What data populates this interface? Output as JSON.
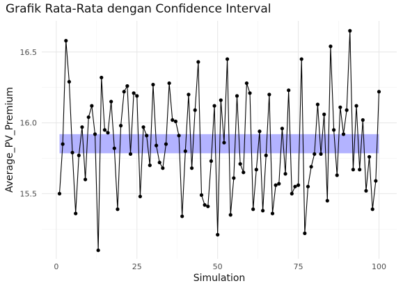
{
  "chart_data": {
    "type": "line",
    "title": "Grafik Rata-Rata dengan Confidence Interval",
    "xlabel": "Simulation",
    "ylabel": "Average_PV_Premium",
    "xlim": [
      -4.5,
      105.5
    ],
    "ylim": [
      15.04,
      16.72
    ],
    "x_ticks": [
      0,
      25,
      50,
      75,
      100
    ],
    "x_tick_labels": [
      "0",
      "25",
      "50",
      "75",
      "100"
    ],
    "y_ticks": [
      15.5,
      16.0,
      16.5
    ],
    "y_tick_labels": [
      "15.5",
      "16.0",
      "16.5"
    ],
    "grid": true,
    "confidence_band": {
      "x_range": [
        1,
        100
      ],
      "lower": 15.785,
      "upper": 15.92,
      "color": "#b3b3ff"
    },
    "series": [
      {
        "color": "#000000",
        "x": [
          1,
          2,
          3,
          4,
          5,
          6,
          7,
          8,
          9,
          10,
          11,
          12,
          13,
          14,
          15,
          16,
          17,
          18,
          19,
          20,
          21,
          22,
          23,
          24,
          25,
          26,
          27,
          28,
          29,
          30,
          31,
          32,
          33,
          34,
          35,
          36,
          37,
          38,
          39,
          40,
          41,
          42,
          43,
          44,
          45,
          46,
          47,
          48,
          49,
          50,
          51,
          52,
          53,
          54,
          55,
          56,
          57,
          58,
          59,
          60,
          61,
          62,
          63,
          64,
          65,
          66,
          67,
          68,
          69,
          70,
          71,
          72,
          73,
          74,
          75,
          76,
          77,
          78,
          79,
          80,
          81,
          82,
          83,
          84,
          85,
          86,
          87,
          88,
          89,
          90,
          91,
          92,
          93,
          94,
          95,
          96,
          97,
          98,
          99,
          100
        ],
        "y": [
          15.5,
          15.85,
          16.58,
          16.29,
          15.79,
          15.36,
          15.77,
          15.97,
          15.6,
          16.04,
          16.12,
          15.92,
          15.1,
          16.32,
          15.95,
          15.93,
          16.15,
          15.82,
          15.39,
          15.98,
          16.22,
          16.26,
          15.78,
          16.21,
          16.19,
          15.48,
          15.97,
          15.91,
          15.7,
          16.27,
          15.84,
          15.72,
          15.68,
          15.85,
          16.28,
          16.02,
          16.01,
          15.91,
          15.34,
          15.8,
          16.2,
          15.68,
          16.09,
          16.43,
          15.49,
          15.42,
          15.41,
          15.73,
          16.12,
          15.21,
          16.16,
          15.86,
          16.45,
          15.35,
          15.61,
          16.19,
          15.71,
          15.65,
          16.28,
          16.21,
          15.39,
          15.67,
          15.94,
          15.38,
          15.77,
          16.2,
          15.36,
          15.56,
          15.57,
          15.96,
          15.64,
          16.23,
          15.5,
          15.55,
          15.56,
          16.45,
          15.22,
          15.55,
          15.69,
          15.78,
          16.13,
          15.78,
          16.06,
          15.45,
          16.54,
          15.95,
          15.63,
          16.11,
          15.92,
          16.09,
          16.65,
          15.67,
          16.12,
          15.67,
          16.02,
          15.52,
          15.76,
          15.39,
          15.59,
          16.22
        ]
      }
    ]
  }
}
